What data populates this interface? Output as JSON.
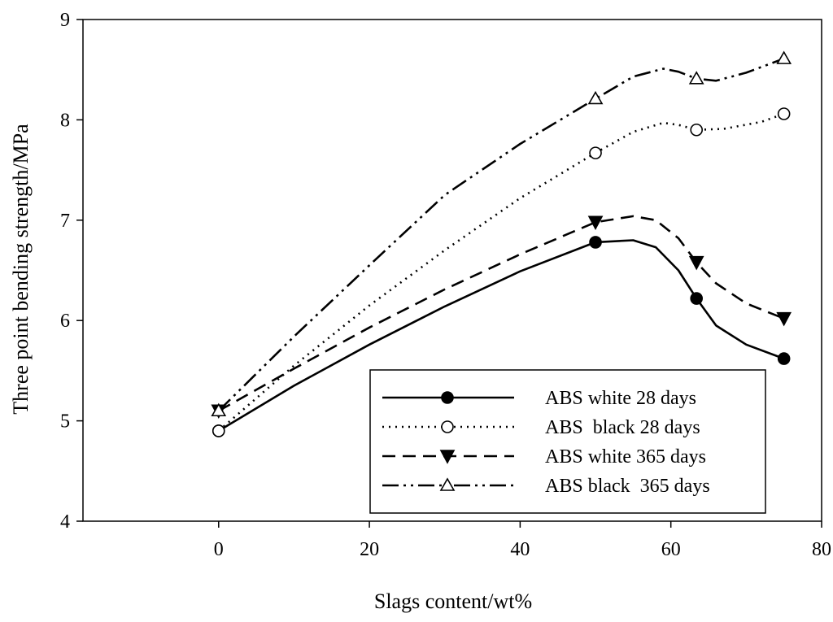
{
  "chart_data": {
    "type": "line",
    "title": "",
    "xlabel": "Slags content/wt%",
    "ylabel": "Three point bending strength/MPa",
    "xlim": [
      -18,
      80
    ],
    "ylim": [
      4,
      9
    ],
    "xticks": [
      "0",
      "20",
      "40",
      "60",
      "80"
    ],
    "yticks": [
      "4",
      "5",
      "6",
      "7",
      "8",
      "9"
    ],
    "grid": false,
    "legend_position": "bottom-right",
    "series": [
      {
        "name": "ABS white 28 days",
        "line_style": "solid",
        "marker": "filled-circle",
        "points": [
          [
            0,
            4.9
          ],
          [
            50,
            6.78
          ],
          [
            63.4,
            6.22
          ],
          [
            75,
            5.62
          ]
        ],
        "curve": [
          [
            0,
            4.9
          ],
          [
            10,
            5.35
          ],
          [
            20,
            5.76
          ],
          [
            30,
            6.14
          ],
          [
            40,
            6.49
          ],
          [
            50,
            6.78
          ],
          [
            55,
            6.8
          ],
          [
            58,
            6.73
          ],
          [
            61,
            6.5
          ],
          [
            63.4,
            6.22
          ],
          [
            66,
            5.95
          ],
          [
            70,
            5.76
          ],
          [
            75,
            5.62
          ]
        ]
      },
      {
        "name": "ABS  black 28 days",
        "line_style": "dotted",
        "marker": "open-circle",
        "points": [
          [
            0,
            4.9
          ],
          [
            50,
            7.67
          ],
          [
            63.4,
            7.9
          ],
          [
            75,
            8.06
          ]
        ],
        "curve": [
          [
            0,
            4.9
          ],
          [
            10,
            5.55
          ],
          [
            20,
            6.15
          ],
          [
            30,
            6.7
          ],
          [
            40,
            7.22
          ],
          [
            50,
            7.67
          ],
          [
            55,
            7.88
          ],
          [
            59,
            7.97
          ],
          [
            61,
            7.95
          ],
          [
            63.4,
            7.9
          ],
          [
            67,
            7.91
          ],
          [
            72,
            7.98
          ],
          [
            75,
            8.06
          ]
        ]
      },
      {
        "name": "ABS white 365 days",
        "line_style": "dashed",
        "marker": "filled-triangle-down",
        "points": [
          [
            0,
            5.1
          ],
          [
            50,
            6.98
          ],
          [
            63.4,
            6.58
          ],
          [
            75,
            6.02
          ]
        ],
        "curve": [
          [
            0,
            5.1
          ],
          [
            10,
            5.52
          ],
          [
            20,
            5.93
          ],
          [
            30,
            6.31
          ],
          [
            40,
            6.66
          ],
          [
            50,
            6.98
          ],
          [
            55,
            7.04
          ],
          [
            58,
            7.0
          ],
          [
            61,
            6.82
          ],
          [
            63.4,
            6.58
          ],
          [
            66,
            6.37
          ],
          [
            70,
            6.17
          ],
          [
            75,
            6.02
          ]
        ]
      },
      {
        "name": "ABS black  365 days",
        "line_style": "dash-dot-dot",
        "marker": "open-triangle-up",
        "points": [
          [
            0,
            5.1
          ],
          [
            50,
            8.21
          ],
          [
            63.4,
            8.41
          ],
          [
            75,
            8.61
          ]
        ],
        "curve": [
          [
            0,
            5.1
          ],
          [
            10,
            5.84
          ],
          [
            20,
            6.55
          ],
          [
            30,
            7.25
          ],
          [
            40,
            7.76
          ],
          [
            50,
            8.21
          ],
          [
            55,
            8.43
          ],
          [
            59,
            8.51
          ],
          [
            61,
            8.48
          ],
          [
            63.4,
            8.41
          ],
          [
            66,
            8.39
          ],
          [
            70,
            8.47
          ],
          [
            75,
            8.61
          ]
        ]
      }
    ]
  }
}
